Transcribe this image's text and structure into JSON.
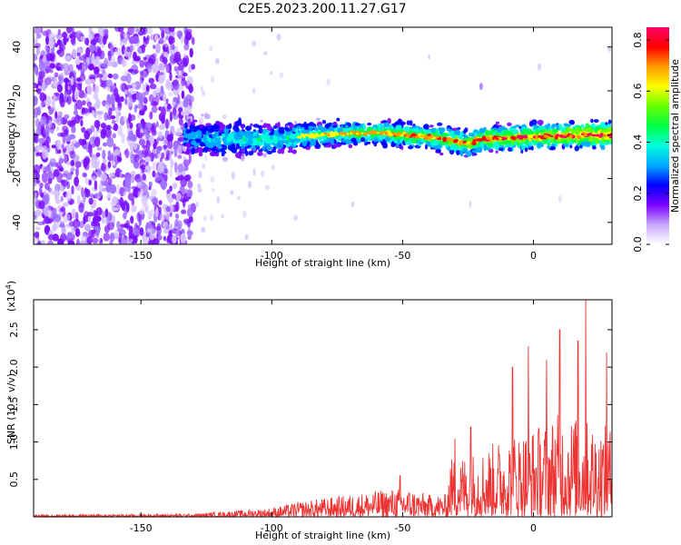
{
  "title": "C2E5.2023.200.11.27.G17",
  "chart_data": [
    {
      "type": "heatmap",
      "xlabel": "Height of straight line (km)",
      "ylabel": "Frequency (Hz)",
      "xlim": [
        -191,
        30
      ],
      "ylim": [
        -50,
        49
      ],
      "xticks": [
        -150,
        -100,
        -50,
        0
      ],
      "yticks": [
        -40,
        -20,
        0,
        20,
        40
      ],
      "colorbar": {
        "label": "Normalized spectral amplitude",
        "range": [
          0.0,
          0.85
        ],
        "ticks": [
          0.0,
          0.2,
          0.4,
          0.6,
          0.8
        ],
        "colormap": [
          "#ffffff",
          "#c8a8ff",
          "#7a00ff",
          "#0000ff",
          "#00aaff",
          "#00ffdd",
          "#00ff44",
          "#66ff00",
          "#ffff00",
          "#ff9900",
          "#ff0000",
          "#ff0066"
        ]
      },
      "ridge": [
        {
          "x": -133,
          "y": -1
        },
        {
          "x": -120,
          "y": -2
        },
        {
          "x": -100,
          "y": -2
        },
        {
          "x": -80,
          "y": 0
        },
        {
          "x": -60,
          "y": 1
        },
        {
          "x": -40,
          "y": -1
        },
        {
          "x": -25,
          "y": -4
        },
        {
          "x": -20,
          "y": -2
        },
        {
          "x": 0,
          "y": -1
        },
        {
          "x": 20,
          "y": 0
        },
        {
          "x": 30,
          "y": 0
        }
      ],
      "noise_region": {
        "x_from": -191,
        "x_to": -130
      },
      "spot": {
        "x": -20,
        "y": 22
      }
    },
    {
      "type": "line",
      "xlabel": "Height of straight line (km)",
      "ylabel": "SNR (10 * v/v)",
      "yscale_label": "(x10",
      "yscale_exp": "4",
      "yscale_close": ")",
      "xlim": [
        -191,
        30
      ],
      "ylim": [
        0,
        2.9
      ],
      "xticks": [
        -150,
        -100,
        -50,
        0
      ],
      "yticks": [
        "0.5",
        "1.0",
        "1.5",
        "2.0",
        "2.5"
      ],
      "color": "#ee3333",
      "envelope": [
        {
          "x": -191,
          "y": 0.03
        },
        {
          "x": -130,
          "y": 0.04
        },
        {
          "x": -115,
          "y": 0.08
        },
        {
          "x": -100,
          "y": 0.12
        },
        {
          "x": -90,
          "y": 0.2
        },
        {
          "x": -80,
          "y": 0.25
        },
        {
          "x": -70,
          "y": 0.3
        },
        {
          "x": -60,
          "y": 0.35
        },
        {
          "x": -50,
          "y": 0.4
        },
        {
          "x": -40,
          "y": 0.3
        },
        {
          "x": -33,
          "y": 0.3
        },
        {
          "x": -32,
          "y": 0.8
        },
        {
          "x": -20,
          "y": 0.9
        },
        {
          "x": -10,
          "y": 1.1
        },
        {
          "x": 0,
          "y": 1.2
        },
        {
          "x": 10,
          "y": 1.4
        },
        {
          "x": 20,
          "y": 1.3
        },
        {
          "x": 30,
          "y": 1.2
        }
      ],
      "peaks": [
        {
          "x": -2,
          "y": 2.28
        },
        {
          "x": 10,
          "y": 2.5
        },
        {
          "x": 17,
          "y": 2.35
        },
        {
          "x": 20,
          "y": 2.9
        },
        {
          "x": 28,
          "y": 2.2
        },
        {
          "x": -8,
          "y": 2.0
        },
        {
          "x": 5,
          "y": 2.1
        },
        {
          "x": -24,
          "y": 1.2
        },
        {
          "x": -30,
          "y": 1.05
        },
        {
          "x": -51,
          "y": 0.55
        }
      ]
    }
  ]
}
